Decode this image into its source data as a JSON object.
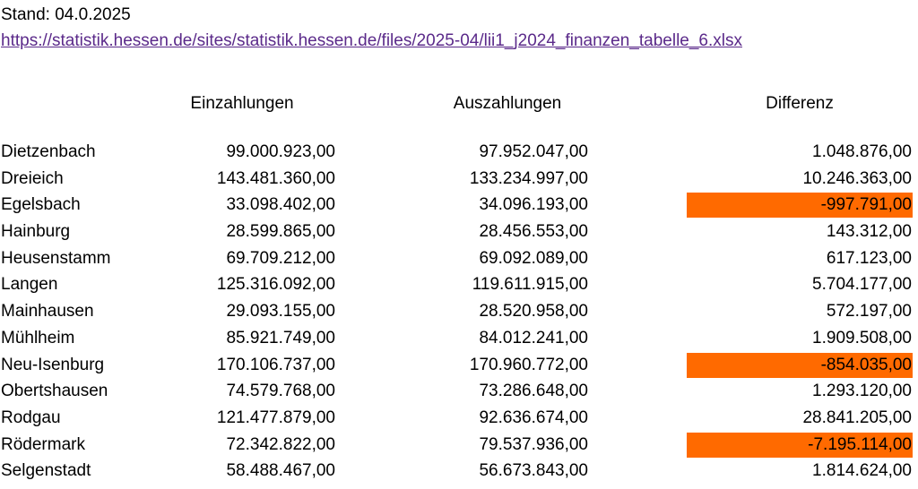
{
  "meta": {
    "stand": "Stand: 04.0.2025",
    "source_url": "https://statistik.hessen.de/sites/statistik.hessen.de/files/2025-04/lii1_j2024_finanzen_tabelle_6.xlsx"
  },
  "headers": {
    "einzahlungen": "Einzahlungen",
    "auszahlungen": "Auszahlungen",
    "differenz": "Differenz"
  },
  "highlight_color": "#ff6a00",
  "rows": [
    {
      "name": "Dietzenbach",
      "ein": "99.000.923,00",
      "aus": "97.952.047,00",
      "diff": "1.048.876,00",
      "negative": false
    },
    {
      "name": "Dreieich",
      "ein": "143.481.360,00",
      "aus": "133.234.997,00",
      "diff": "10.246.363,00",
      "negative": false
    },
    {
      "name": "Egelsbach",
      "ein": "33.098.402,00",
      "aus": "34.096.193,00",
      "diff": "-997.791,00",
      "negative": true
    },
    {
      "name": "Hainburg",
      "ein": "28.599.865,00",
      "aus": "28.456.553,00",
      "diff": "143.312,00",
      "negative": false
    },
    {
      "name": "Heusenstamm",
      "ein": "69.709.212,00",
      "aus": "69.092.089,00",
      "diff": "617.123,00",
      "negative": false
    },
    {
      "name": "Langen",
      "ein": "125.316.092,00",
      "aus": "119.611.915,00",
      "diff": "5.704.177,00",
      "negative": false
    },
    {
      "name": "Mainhausen",
      "ein": "29.093.155,00",
      "aus": "28.520.958,00",
      "diff": "572.197,00",
      "negative": false
    },
    {
      "name": "Mühlheim",
      "ein": "85.921.749,00",
      "aus": "84.012.241,00",
      "diff": "1.909.508,00",
      "negative": false
    },
    {
      "name": "Neu-Isenburg",
      "ein": "170.106.737,00",
      "aus": "170.960.772,00",
      "diff": "-854.035,00",
      "negative": true
    },
    {
      "name": "Obertshausen",
      "ein": "74.579.768,00",
      "aus": "73.286.648,00",
      "diff": "1.293.120,00",
      "negative": false
    },
    {
      "name": "Rodgau",
      "ein": "121.477.879,00",
      "aus": "92.636.674,00",
      "diff": "28.841.205,00",
      "negative": false
    },
    {
      "name": "Rödermark",
      "ein": "72.342.822,00",
      "aus": "79.537.936,00",
      "diff": "-7.195.114,00",
      "negative": true
    },
    {
      "name": "Selgenstadt",
      "ein": "58.488.467,00",
      "aus": "56.673.843,00",
      "diff": "1.814.624,00",
      "negative": false
    }
  ]
}
